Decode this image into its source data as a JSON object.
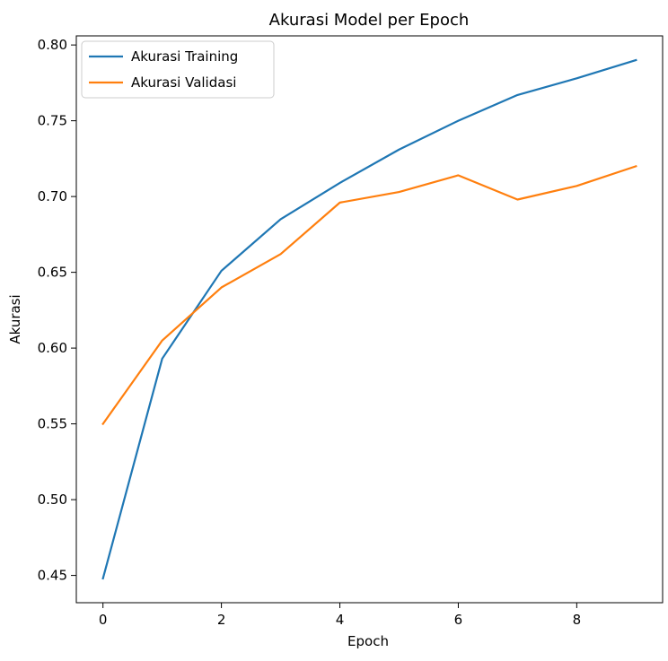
{
  "chart_data": {
    "type": "line",
    "title": "Akurasi Model per Epoch",
    "xlabel": "Epoch",
    "ylabel": "Akurasi",
    "x": [
      0,
      1,
      2,
      3,
      4,
      5,
      6,
      7,
      8,
      9
    ],
    "xlim": [
      -0.45,
      9.45
    ],
    "ylim": [
      0.432,
      0.806
    ],
    "xticks": [
      0,
      2,
      4,
      6,
      8
    ],
    "xtick_labels": [
      "0",
      "2",
      "4",
      "6",
      "8"
    ],
    "yticks": [
      0.45,
      0.5,
      0.55,
      0.6,
      0.65,
      0.7,
      0.75,
      0.8
    ],
    "ytick_labels": [
      "0.45",
      "0.50",
      "0.55",
      "0.60",
      "0.65",
      "0.70",
      "0.75",
      "0.80"
    ],
    "grid": false,
    "legend_position": "top-left",
    "series": [
      {
        "name": "Akurasi Training",
        "color": "#1f77b4",
        "values": [
          0.448,
          0.593,
          0.651,
          0.685,
          0.709,
          0.731,
          0.75,
          0.767,
          0.778,
          0.79
        ]
      },
      {
        "name": "Akurasi Validasi",
        "color": "#ff7f0e",
        "values": [
          0.55,
          0.605,
          0.64,
          0.662,
          0.696,
          0.703,
          0.714,
          0.698,
          0.707,
          0.72
        ]
      }
    ]
  }
}
